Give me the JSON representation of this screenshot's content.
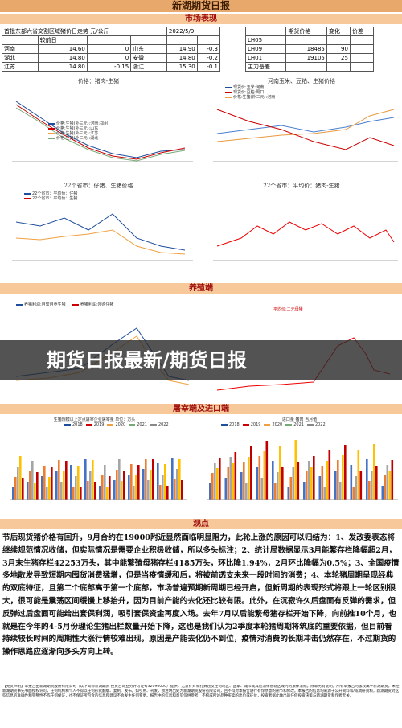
{
  "header": {
    "title": "新湖期货日报"
  },
  "market": {
    "heading": "市场表现",
    "spot_table": {
      "title": "首批东部六省交割区域猪价日走势 元/公斤",
      "date": "2022/5/9",
      "subheader": "较前日",
      "rows": [
        [
          "河南",
          "14.60",
          "0",
          "山东",
          "14.90",
          "-0.3"
        ],
        [
          "湖北",
          "14.80",
          "0",
          "安徽",
          "14.80",
          "-0.2"
        ],
        [
          "江苏",
          "14.80",
          "-0.15",
          "浙江",
          "15.30",
          "-0.1"
        ]
      ]
    },
    "futures_table": {
      "headers": [
        "期货价格",
        "变化",
        "价差"
      ],
      "rows": [
        [
          "LH05"
        ],
        [
          "LH09",
          "18485",
          "90"
        ],
        [
          "LH01",
          "19105",
          "25"
        ],
        [
          "主力基差"
        ]
      ]
    },
    "charts": [
      {
        "title": "价格：猪肉-生猪",
        "legend": [
          "价格:生猪(外三元):河南:郑州",
          "价格:生猪(外三元):山东",
          "价格:生猪(外三元):江苏",
          "价格:生猪(外三元):湖北"
        ]
      },
      {
        "title": "河南玉米、豆粕、生猪价格",
        "legend": [
          "现货价:玉米:河南",
          "现货价:豆粕:周口",
          "价格:生猪(外三元):河南"
        ]
      },
      {
        "title": "22个省市：仔猪、生猪价格",
        "legend": [
          "22个省市：平均价：仔猪",
          "22个省市：平均价：生猪"
        ]
      },
      {
        "title": "22个省市：平均价：猪肉-生猪"
      }
    ]
  },
  "breeding": {
    "heading": "养殖端",
    "legend": [
      "养猪利润:自繁自养生猪",
      "养猪利润:外购仔猪"
    ],
    "sow_legend": "平均价:二元母猪"
  },
  "overlay": {
    "text": "期货日报最新/期货日报"
  },
  "slaughter": {
    "heading": "屠宰端及进口端",
    "left_title": "生猪规模以上定点屠宰企业屠宰量 单位：万头",
    "right_title": "进口量 猪肉 当月值",
    "years": [
      "2018",
      "2019",
      "2020",
      "2021",
      "2022"
    ]
  },
  "view": {
    "heading": "观点",
    "text": "节后现货猪价格有回升，9月合约在19000附近显然面临明显阻力，此轮上涨的原因可以归结为：1、发改委表态将继续规范情况收储，但实际情况是需要企业积极收储，所以多头标注；2、统计局数据显示3月能繁存栏降幅超2月，3月末生猪存栏42253万头，其中能繁殖母猪存栏4185万头，环比降1.94%，2月环比降幅为0.5%；3、全国疫情多地散发导致短期内囤货消费猛增，但是当疫情缓和后，将被前透支未来一段时间的消费；4、本轮猪周期呈现经典的双底特征，且第二个底部高于第一个底部，市场普遍预期新周期已经开启，但新周期的表现形式将跟上一轮区别很大，很可能是震荡区间缓慢上移抬升，因为目前产能的去化还比较有限。此外，在沉寂许久后盘面有反弹的需求，但反弹过后盘面可能给出套保利润，吸引套保资金再度入场。去年7月以后能繁母猪存栏开始下降，向前推10个月，也就是在今年的4-5月份理论生猪出栏数量开始下降，这也是我们认为2季度本轮猪周期将筑底的重要依据，但目前看持续较长时间的周期性大涨行情较难出现，原因是产能去化仍不到位，疫情对消费的长期冲击仍然存在，不过期货的操作思路应逐渐向多头方向上转。"
  },
  "disclaimer": {
    "title": "【免责声明】",
    "text": "本报告由新湖期货股份有限公司（以下简称新湖期货 投资咨询业务许可证号32090000）提供，无意针对或打算违反任何地区、国家、城市或其他法律管辖区域内的法律法规。除非另有说明，所有本报告的版权属于新湖期货。未经新湖期货事先书面授权许可，任何机构和个人不得以任何形式翻版、复制、发布。如引用、刊发，须注明出处为新湖期货股份有限公司，且不得对本报告进行有悖原意的删节和修改。本报告的信息均来源于公开资料和/或调研资料，新湖期货对这些信息的准确性和完整性不作任何保证，也不保证所包含的信息和建议不会发生任何变更。报告中的信息和意见仅供参考，不构成所述品种买卖的出价或征价，投资者据此做出的任何投资决策与新湖期货和作者无关。"
  }
}
